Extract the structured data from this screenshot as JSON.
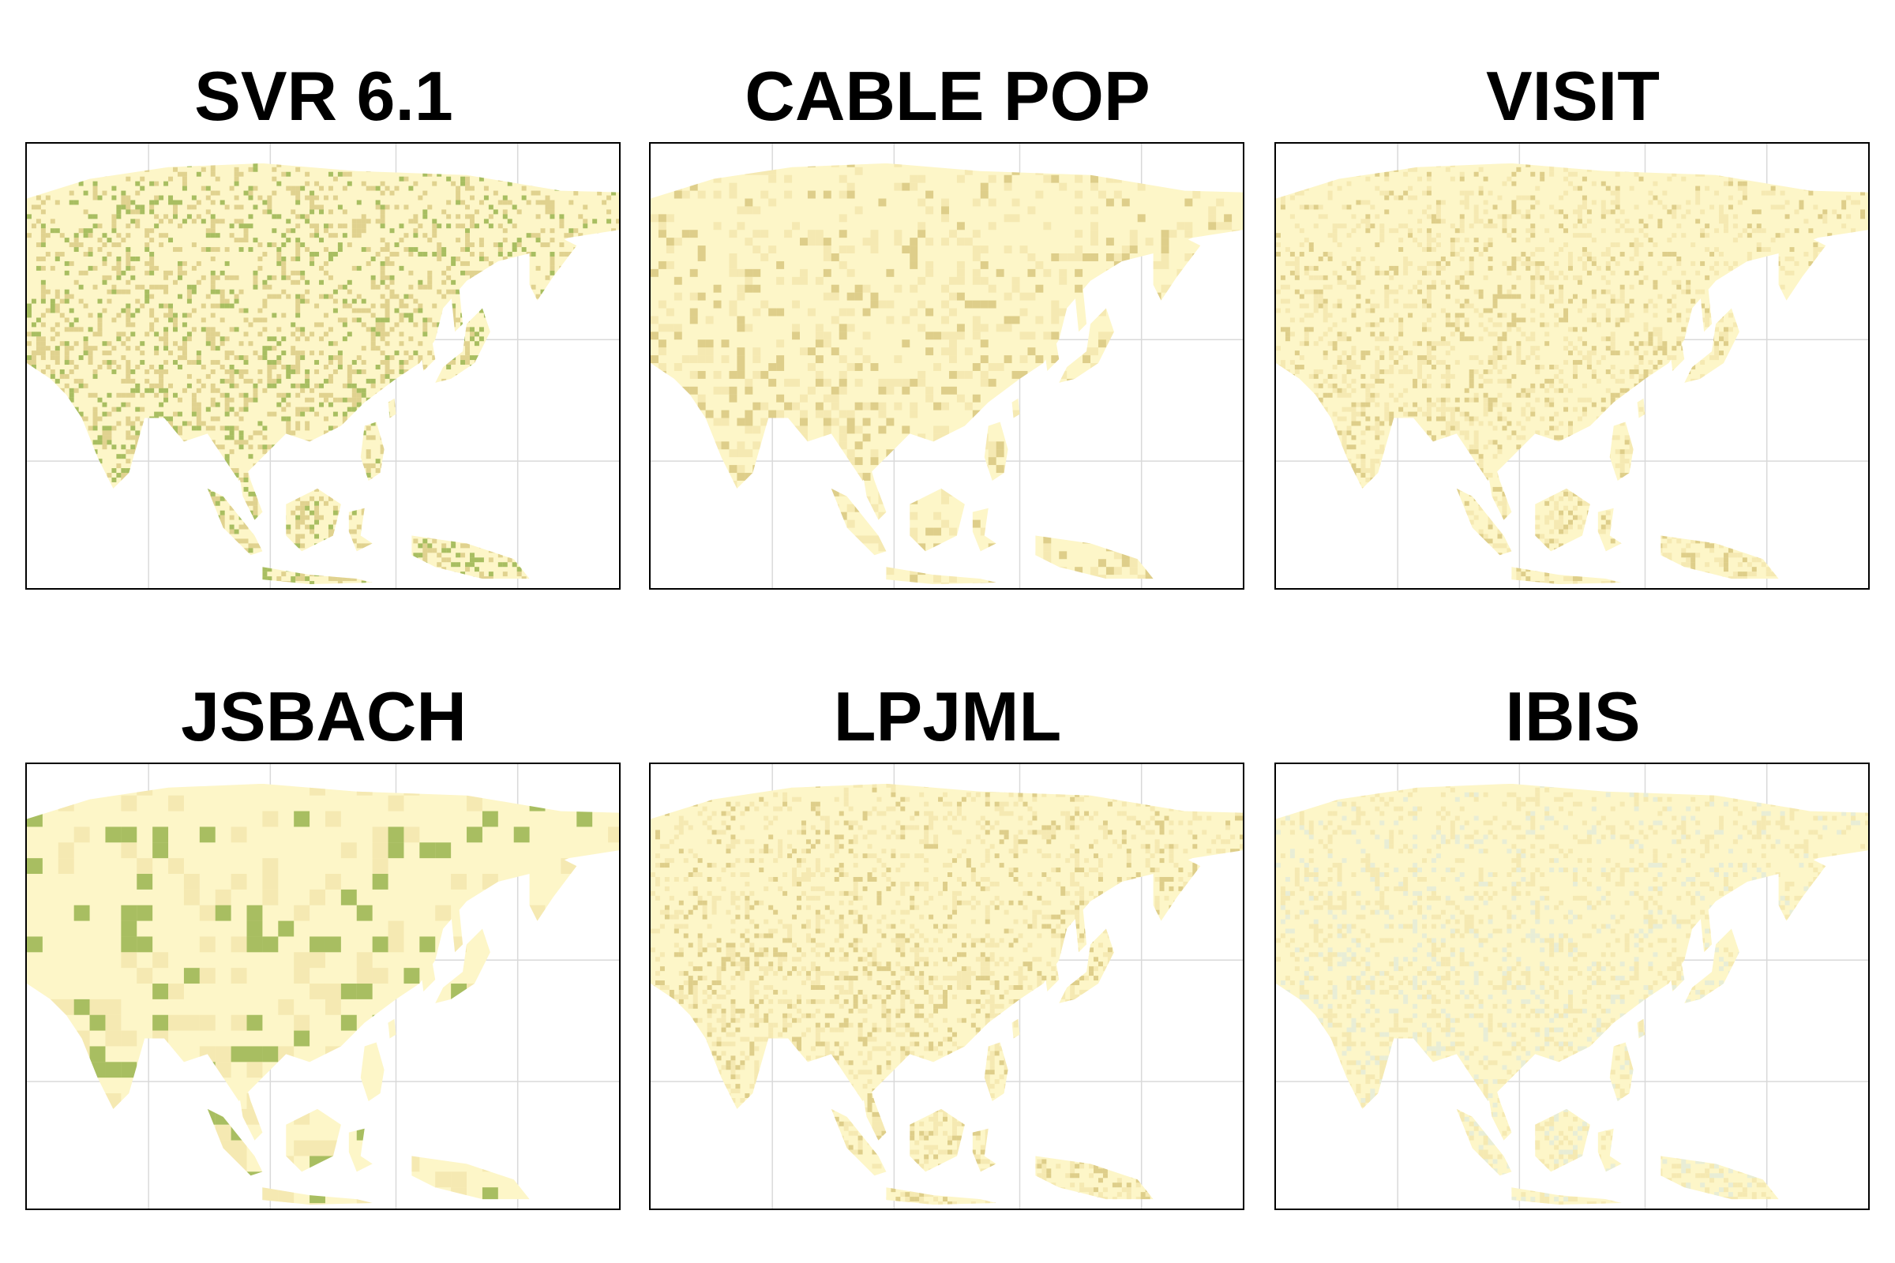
{
  "panels": [
    {
      "title": "SVR 6.1",
      "tone": "strong",
      "pixel": "fine"
    },
    {
      "title": "CABLE POP",
      "tone": "mid",
      "pixel": "coarse"
    },
    {
      "title": "VISIT",
      "tone": "mid",
      "pixel": "fine"
    },
    {
      "title": "JSBACH",
      "tone": "mid-green",
      "pixel": "very-coarse"
    },
    {
      "title": "LPJML",
      "tone": "mid",
      "pixel": "fine"
    },
    {
      "title": "IBIS",
      "tone": "light-blue",
      "pixel": "fine"
    }
  ],
  "colors": {
    "land_light": "#fdf6c8",
    "land_mid": "#eedfa0",
    "land_dark": "#c9b460",
    "green_strong": "#6f9a1c",
    "green_dark": "#2f6b1f",
    "blue_tint": "#dbe8e0",
    "grid": "#d9d9d9",
    "frame": "#000000"
  }
}
